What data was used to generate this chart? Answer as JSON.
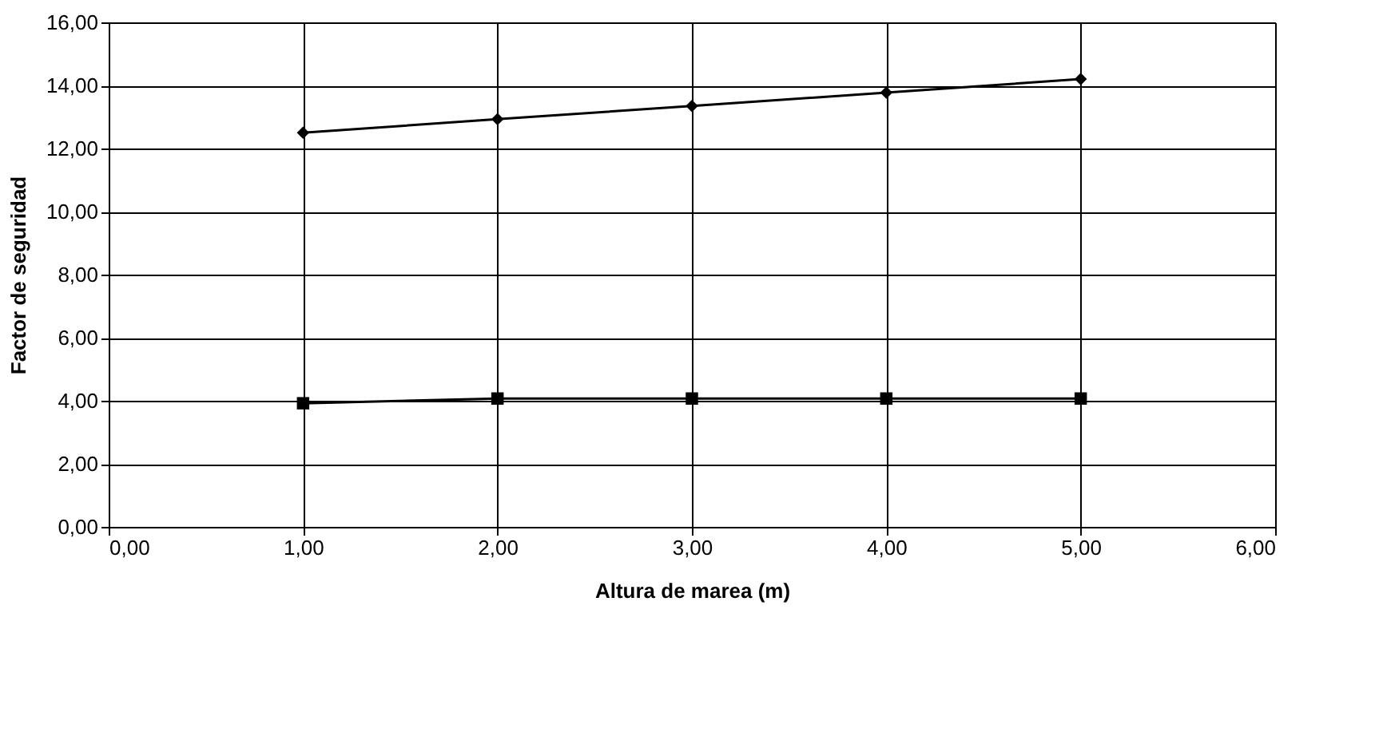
{
  "chart_data": {
    "type": "line",
    "xlabel": "Altura de marea (m)",
    "ylabel": "Factor de seguridad",
    "x": [
      1,
      2,
      3,
      4,
      5
    ],
    "series": [
      {
        "color": "#000000",
        "marker": "diamond",
        "values": [
          12.5,
          12.93,
          13.35,
          13.77,
          14.2
        ]
      },
      {
        "color": "#000000",
        "marker": "square",
        "values": [
          3.92,
          4.07,
          4.07,
          4.07,
          4.07
        ]
      }
    ],
    "xlim": [
      0,
      6
    ],
    "ylim": [
      0,
      16
    ],
    "xticks": [
      {
        "value": 0,
        "label": "0,00"
      },
      {
        "value": 1,
        "label": "1,00"
      },
      {
        "value": 2,
        "label": "2,00"
      },
      {
        "value": 3,
        "label": "3,00"
      },
      {
        "value": 4,
        "label": "4,00"
      },
      {
        "value": 5,
        "label": "5,00"
      },
      {
        "value": 6,
        "label": "6,00"
      }
    ],
    "yticks": [
      {
        "value": 0,
        "label": "0,00"
      },
      {
        "value": 2,
        "label": "2,00"
      },
      {
        "value": 4,
        "label": "4,00"
      },
      {
        "value": 6,
        "label": "6,00"
      },
      {
        "value": 8,
        "label": "8,00"
      },
      {
        "value": 10,
        "label": "10,00"
      },
      {
        "value": 12,
        "label": "12,00"
      },
      {
        "value": 14,
        "label": "14,00"
      },
      {
        "value": 16,
        "label": "16,00"
      }
    ],
    "grid": true,
    "line_style": "solid"
  }
}
